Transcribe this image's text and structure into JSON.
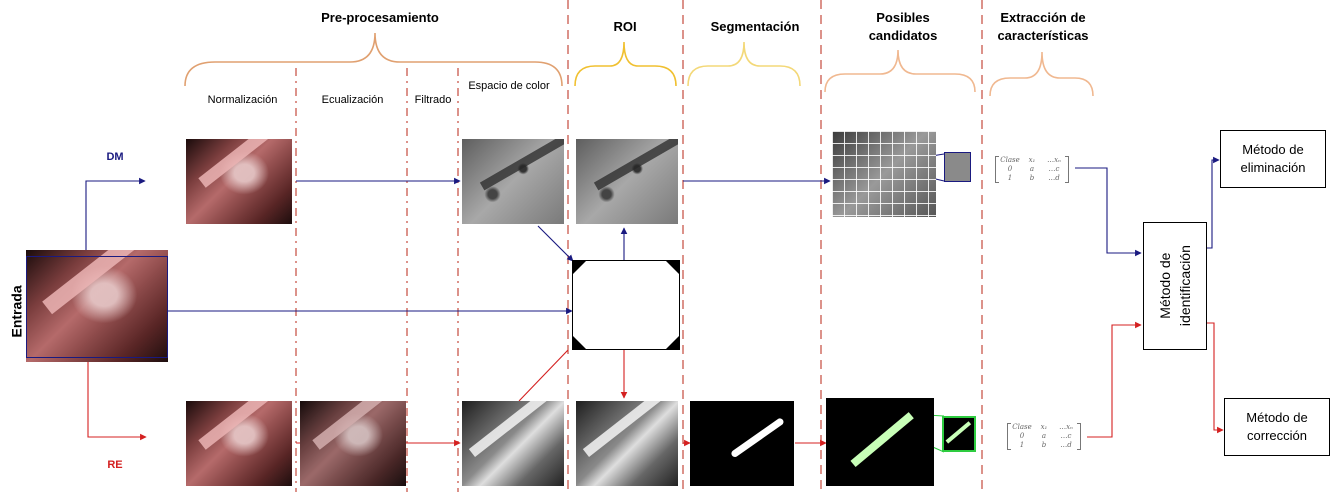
{
  "headers": {
    "preprocessing": "Pre-procesamiento",
    "roi": "ROI",
    "segmentation": "Segmentación",
    "candidates": "Posibles candidatos",
    "features": "Extracción de características"
  },
  "substeps": {
    "normalization": "Normalización",
    "equalization": "Ecualización",
    "filtering": "Filtrado",
    "color_space": "Espacio de color"
  },
  "branches": {
    "input": "Entrada",
    "dm": "DM",
    "re": "RE"
  },
  "features_matrix": {
    "rows": [
      [
        "Clase",
        "x₁",
        "…xₙ"
      ],
      [
        "0",
        "a",
        "…c"
      ],
      [
        "1",
        "b",
        "…d"
      ]
    ]
  },
  "methods": {
    "identification": "Método de identificación",
    "elimination": "Método de eliminación",
    "correction": "Método de corrección"
  },
  "colors": {
    "dm": "#1a1a80",
    "re": "#d42020",
    "divider": "#c0392b",
    "brace_pre": "#e0a070",
    "brace_roi": "#f0c030",
    "brace_seg": "#f3d878",
    "brace_cand": "#f0b890",
    "brace_feat": "#f0b890"
  }
}
